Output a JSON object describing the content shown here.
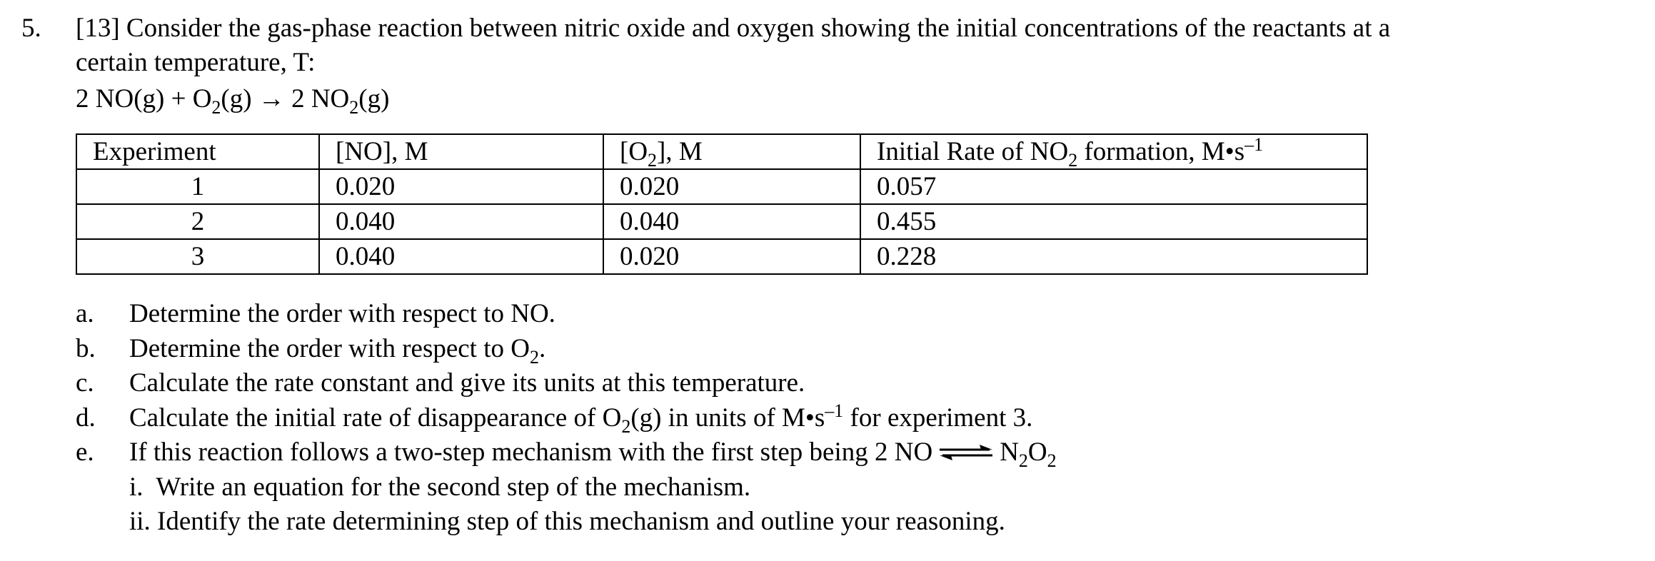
{
  "question": {
    "number": "5.",
    "points": "[13]",
    "stem_line1": "Consider the gas-phase reaction between nitric oxide and oxygen showing the initial concentrations of the reactants at a",
    "stem_line2": "certain temperature, T:",
    "equation": {
      "part1": "2 NO(g) + O",
      "sub1": "2",
      "part2": "(g) → 2 NO",
      "sub2": "2",
      "part3": "(g)"
    }
  },
  "table": {
    "headers": {
      "experiment": "Experiment",
      "no": "[NO], M",
      "o2_pre": "[O",
      "o2_sub": "2",
      "o2_post": "], M",
      "rate_pre": "Initial Rate of NO",
      "rate_sub": "2",
      "rate_mid": " formation, M•s",
      "rate_sup": "–1"
    },
    "rows": [
      {
        "experiment": "1",
        "no": "0.020",
        "o2": "0.020",
        "rate": "0.057"
      },
      {
        "experiment": "2",
        "no": "0.040",
        "o2": "0.040",
        "rate": "0.455"
      },
      {
        "experiment": "3",
        "no": "0.040",
        "o2": "0.020",
        "rate": "0.228"
      }
    ]
  },
  "parts": {
    "a": {
      "label": "a.",
      "text": "Determine the order with respect to NO."
    },
    "b": {
      "label": "b.",
      "pre": "Determine the order with respect to O",
      "sub": "2",
      "post": "."
    },
    "c": {
      "label": "c.",
      "text": "Calculate the rate constant and give its units at this temperature."
    },
    "d": {
      "label": "d.",
      "pre": "Calculate the initial rate of disappearance of O",
      "sub": "2",
      "mid": "(g) in units of M•s",
      "sup": "–1",
      "post": " for experiment 3."
    },
    "e": {
      "label": "e.",
      "pre": "If this reaction follows a two-step mechanism with the first step being 2 NO",
      "product_pre": "N",
      "product_sub1": "2",
      "product_mid": "O",
      "product_sub2": "2"
    },
    "sub_items": [
      {
        "text": "i.  Write an equation for the second step of the mechanism."
      },
      {
        "text": "ii. Identify the rate determining step of this mechanism and outline your reasoning."
      }
    ]
  }
}
